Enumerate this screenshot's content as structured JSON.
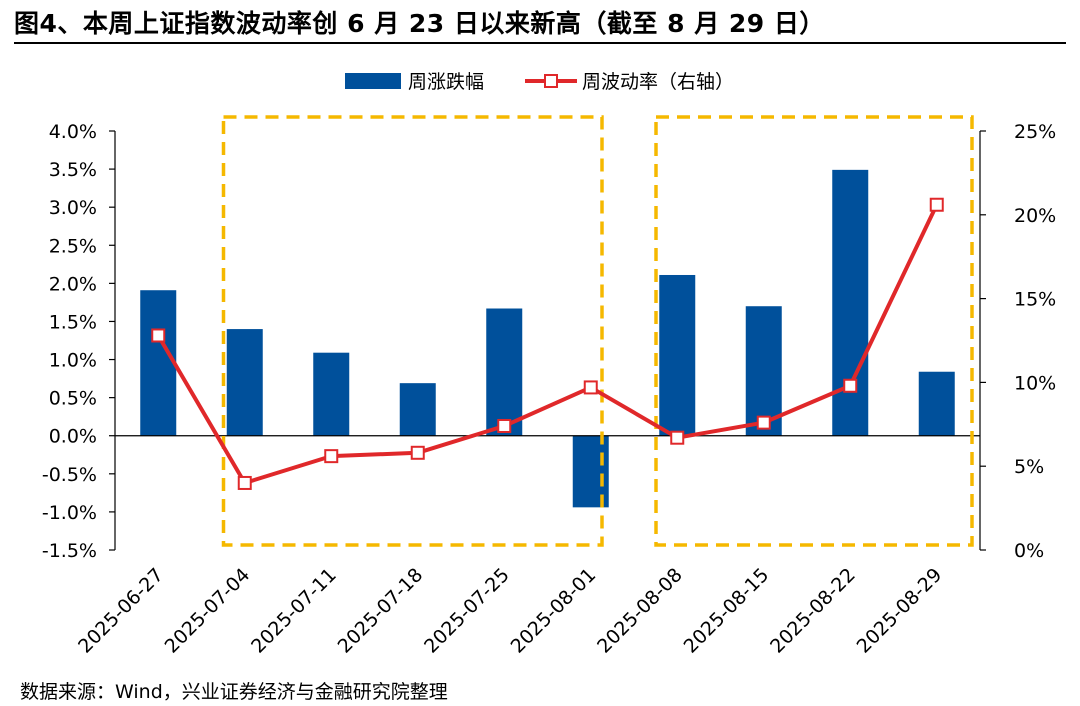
{
  "figure": {
    "title": "图4、本周上证指数波动率创 6 月 23 日以来新高（截至 8 月 29 日）",
    "source": "数据来源：Wind，兴业证券经济与金融研究院整理"
  },
  "chart_data": {
    "type": "bar",
    "categories": [
      "2025-06-27",
      "2025-07-04",
      "2025-07-11",
      "2025-07-18",
      "2025-07-25",
      "2025-08-01",
      "2025-08-08",
      "2025-08-15",
      "2025-08-22",
      "2025-08-29"
    ],
    "series": [
      {
        "name": "周涨跌幅",
        "type": "bar",
        "axis": "left",
        "color": "#00509b",
        "values": [
          1.91,
          1.4,
          1.09,
          0.69,
          1.67,
          -0.94,
          2.11,
          1.7,
          3.49,
          0.84
        ]
      },
      {
        "name": "周波动率（右轴）",
        "type": "line",
        "axis": "right",
        "color": "#e0282a",
        "values": [
          12.8,
          4.0,
          5.6,
          5.8,
          7.4,
          9.7,
          6.7,
          7.6,
          9.8,
          20.6
        ]
      }
    ],
    "left_axis": {
      "min": -1.5,
      "max": 4.0,
      "step": 0.5,
      "unit": "%",
      "decimals": 1
    },
    "right_axis": {
      "min": 0,
      "max": 25,
      "step": 5,
      "unit": "%",
      "decimals": 0
    },
    "highlight_groups": [
      {
        "from_category": "2025-07-04",
        "to_category": "2025-08-01",
        "color": "#f5b800"
      },
      {
        "from_category": "2025-08-08",
        "to_category": "2025-08-29",
        "color": "#f5b800"
      }
    ],
    "legend": {
      "position": "top-center"
    }
  }
}
